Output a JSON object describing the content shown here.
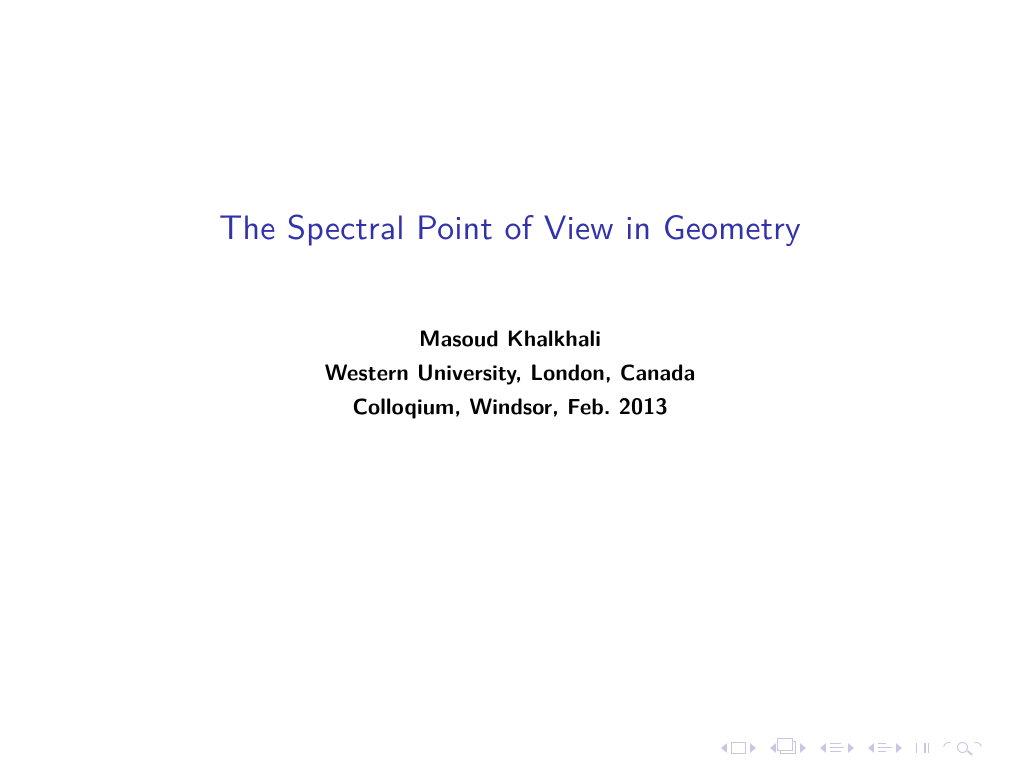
{
  "title": "The Spectral Point of View in Geometry",
  "author": "Masoud Khalkhali",
  "affiliation": "Western University, London, Canada",
  "event": "Colloqium, Windsor, Feb. 2013",
  "colors": {
    "title_color": "#3232aa",
    "body_color": "#000000",
    "nav_color": "#9a9ad0",
    "background_color": "#ffffff"
  },
  "typography": {
    "title_fontsize": 34,
    "title_weight": 400,
    "author_fontsize": 22,
    "author_weight": 700
  },
  "nav": {
    "first_slide": "first-slide",
    "prev_slide": "prev-slide",
    "prev_section": "prev-section",
    "next_section": "next-section",
    "prev_subsection": "prev-subsection",
    "next_subsection": "next-subsection",
    "goto_start": "goto-start",
    "goto_end": "goto-end",
    "back": "back",
    "forward": "forward",
    "search": "search"
  }
}
